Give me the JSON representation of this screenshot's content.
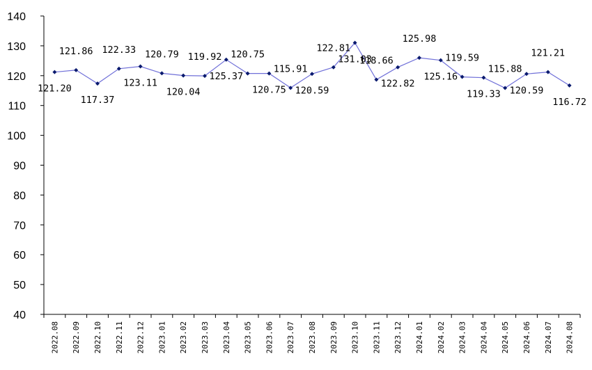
{
  "chart_data": {
    "type": "line",
    "categories": [
      "2022.08",
      "2022.09",
      "2022.10",
      "2022.11",
      "2022.12",
      "2023.01",
      "2023.02",
      "2023.03",
      "2023.04",
      "2023.05",
      "2023.06",
      "2023.07",
      "2023.08",
      "2023.09",
      "2023.10",
      "2023.11",
      "2023.12",
      "2024.01",
      "2024.02",
      "2024.03",
      "2024.04",
      "2024.05",
      "2024.06",
      "2024.07",
      "2024.08"
    ],
    "series": [
      {
        "values": [
          121.2,
          121.86,
          117.37,
          122.33,
          123.11,
          120.79,
          120.04,
          119.92,
          125.37,
          120.75,
          120.75,
          115.91,
          120.59,
          122.81,
          131.03,
          118.66,
          122.82,
          125.98,
          125.16,
          119.59,
          119.33,
          115.88,
          120.59,
          121.21,
          116.72
        ],
        "labels": [
          "121.20",
          "121.86",
          "117.37",
          "122.33",
          "123.11",
          "120.79",
          "120.04",
          "119.92",
          "125.37",
          "120.75",
          "120.75",
          "115.91",
          "120.59",
          "122.81",
          "131.03",
          "118.66",
          "122.82",
          "125.98",
          "125.16",
          "119.59",
          "119.33",
          "115.88",
          "120.59",
          "121.21",
          "116.72"
        ],
        "color": "#6f6fd8",
        "marker_color": "#0a1a6e"
      }
    ],
    "ylim": [
      40,
      140
    ],
    "yticks": [
      "40",
      "50",
      "60",
      "70",
      "80",
      "90",
      "100",
      "110",
      "120",
      "130",
      "140"
    ],
    "grid": false,
    "legend": "none"
  }
}
